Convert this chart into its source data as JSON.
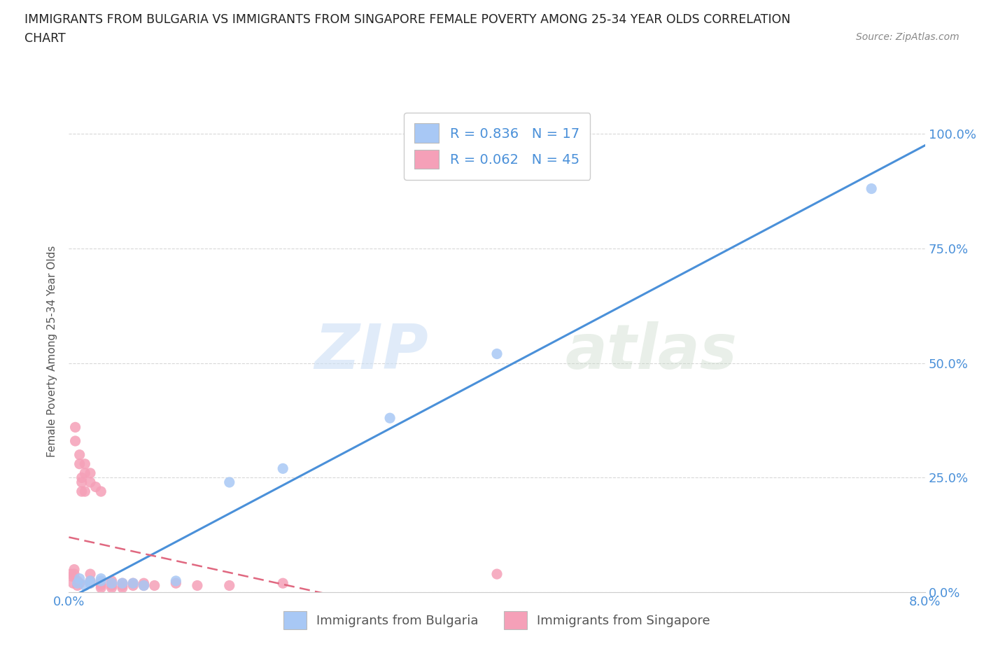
{
  "title_line1": "IMMIGRANTS FROM BULGARIA VS IMMIGRANTS FROM SINGAPORE FEMALE POVERTY AMONG 25-34 YEAR OLDS CORRELATION",
  "title_line2": "CHART",
  "source": "Source: ZipAtlas.com",
  "ylabel": "Female Poverty Among 25-34 Year Olds",
  "xlim": [
    0.0,
    0.08
  ],
  "ylim": [
    0.0,
    1.05
  ],
  "ytick_labels": [
    "0.0%",
    "25.0%",
    "50.0%",
    "75.0%",
    "100.0%"
  ],
  "ytick_vals": [
    0.0,
    0.25,
    0.5,
    0.75,
    1.0
  ],
  "xtick_labels": [
    "0.0%",
    "8.0%"
  ],
  "xtick_vals": [
    0.0,
    0.08
  ],
  "watermark": "ZIPatlas",
  "bulgaria_color": "#a8c8f5",
  "singapore_color": "#f5a0b8",
  "bulgaria_line_color": "#4a90d9",
  "singapore_line_color": "#e06880",
  "bulgaria_scatter": [
    [
      0.0008,
      0.02
    ],
    [
      0.001,
      0.03
    ],
    [
      0.0015,
      0.015
    ],
    [
      0.002,
      0.025
    ],
    [
      0.002,
      0.02
    ],
    [
      0.003,
      0.03
    ],
    [
      0.003,
      0.025
    ],
    [
      0.004,
      0.02
    ],
    [
      0.005,
      0.02
    ],
    [
      0.006,
      0.02
    ],
    [
      0.007,
      0.015
    ],
    [
      0.01,
      0.025
    ],
    [
      0.015,
      0.24
    ],
    [
      0.02,
      0.27
    ],
    [
      0.03,
      0.38
    ],
    [
      0.04,
      0.52
    ],
    [
      0.075,
      0.88
    ]
  ],
  "singapore_scatter": [
    [
      0.0002,
      0.04
    ],
    [
      0.0003,
      0.035
    ],
    [
      0.0004,
      0.02
    ],
    [
      0.0005,
      0.05
    ],
    [
      0.0005,
      0.04
    ],
    [
      0.0006,
      0.36
    ],
    [
      0.0006,
      0.33
    ],
    [
      0.0008,
      0.015
    ],
    [
      0.0008,
      0.025
    ],
    [
      0.001,
      0.3
    ],
    [
      0.001,
      0.28
    ],
    [
      0.001,
      0.02
    ],
    [
      0.0012,
      0.22
    ],
    [
      0.0012,
      0.25
    ],
    [
      0.0012,
      0.24
    ],
    [
      0.0015,
      0.22
    ],
    [
      0.0015,
      0.26
    ],
    [
      0.0015,
      0.28
    ],
    [
      0.002,
      0.26
    ],
    [
      0.002,
      0.24
    ],
    [
      0.002,
      0.04
    ],
    [
      0.002,
      0.025
    ],
    [
      0.002,
      0.02
    ],
    [
      0.0025,
      0.23
    ],
    [
      0.003,
      0.22
    ],
    [
      0.003,
      0.02
    ],
    [
      0.003,
      0.015
    ],
    [
      0.003,
      0.01
    ],
    [
      0.004,
      0.025
    ],
    [
      0.004,
      0.015
    ],
    [
      0.004,
      0.02
    ],
    [
      0.004,
      0.01
    ],
    [
      0.005,
      0.02
    ],
    [
      0.005,
      0.015
    ],
    [
      0.005,
      0.01
    ],
    [
      0.006,
      0.02
    ],
    [
      0.006,
      0.015
    ],
    [
      0.007,
      0.02
    ],
    [
      0.007,
      0.015
    ],
    [
      0.008,
      0.015
    ],
    [
      0.01,
      0.02
    ],
    [
      0.012,
      0.015
    ],
    [
      0.015,
      0.015
    ],
    [
      0.02,
      0.02
    ],
    [
      0.04,
      0.04
    ]
  ],
  "bg_color": "#ffffff",
  "grid_color": "#d8d8d8",
  "title_color": "#222222",
  "axis_label_color": "#555555",
  "tick_label_color": "#4a90d9",
  "legend_border_color": "#cccccc"
}
